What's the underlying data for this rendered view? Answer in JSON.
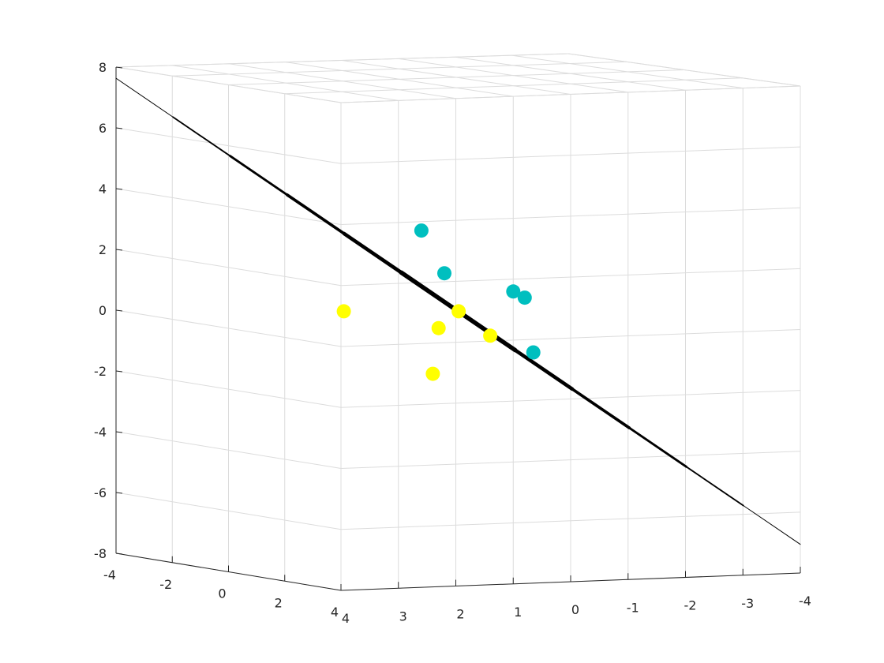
{
  "chart_data": {
    "type": "scatter",
    "projection": "3d",
    "title": "",
    "xlabel": "",
    "ylabel": "",
    "zlabel": "",
    "xlim": [
      -4,
      4
    ],
    "ylim": [
      -4,
      4
    ],
    "zlim": [
      -8,
      8
    ],
    "grid": true,
    "box": true,
    "x_ticks": [
      "-4",
      "-2",
      "0",
      "2",
      "4"
    ],
    "y_ticks": [
      "4",
      "3",
      "2",
      "1",
      "0",
      "-1",
      "-2",
      "-3",
      "-4"
    ],
    "z_ticks": [
      "-8",
      "-6",
      "-4",
      "-2",
      "0",
      "2",
      "4",
      "6",
      "8"
    ],
    "series": [
      {
        "color": "#00bfbf",
        "points": [
          {
            "screen": [
              2.6,
              2.6
            ]
          },
          {
            "screen": [
              2.2,
              1.2
            ]
          },
          {
            "screen": [
              1.0,
              0.6
            ]
          },
          {
            "screen": [
              0.8,
              0.4
            ]
          },
          {
            "screen": [
              0.65,
              -1.4
            ]
          }
        ]
      },
      {
        "color": "#ffff00",
        "points": [
          {
            "screen": [
              3.95,
              -0.05
            ]
          },
          {
            "screen": [
              1.95,
              -0.05
            ]
          },
          {
            "screen": [
              2.3,
              -0.6
            ]
          },
          {
            "screen": [
              1.4,
              -0.85
            ]
          },
          {
            "screen": [
              2.4,
              -2.1
            ]
          }
        ]
      }
    ],
    "line": {
      "color": "#000000",
      "from": [
        -4,
        7.6
      ],
      "to": [
        -4,
        -7.7
      ]
    }
  }
}
